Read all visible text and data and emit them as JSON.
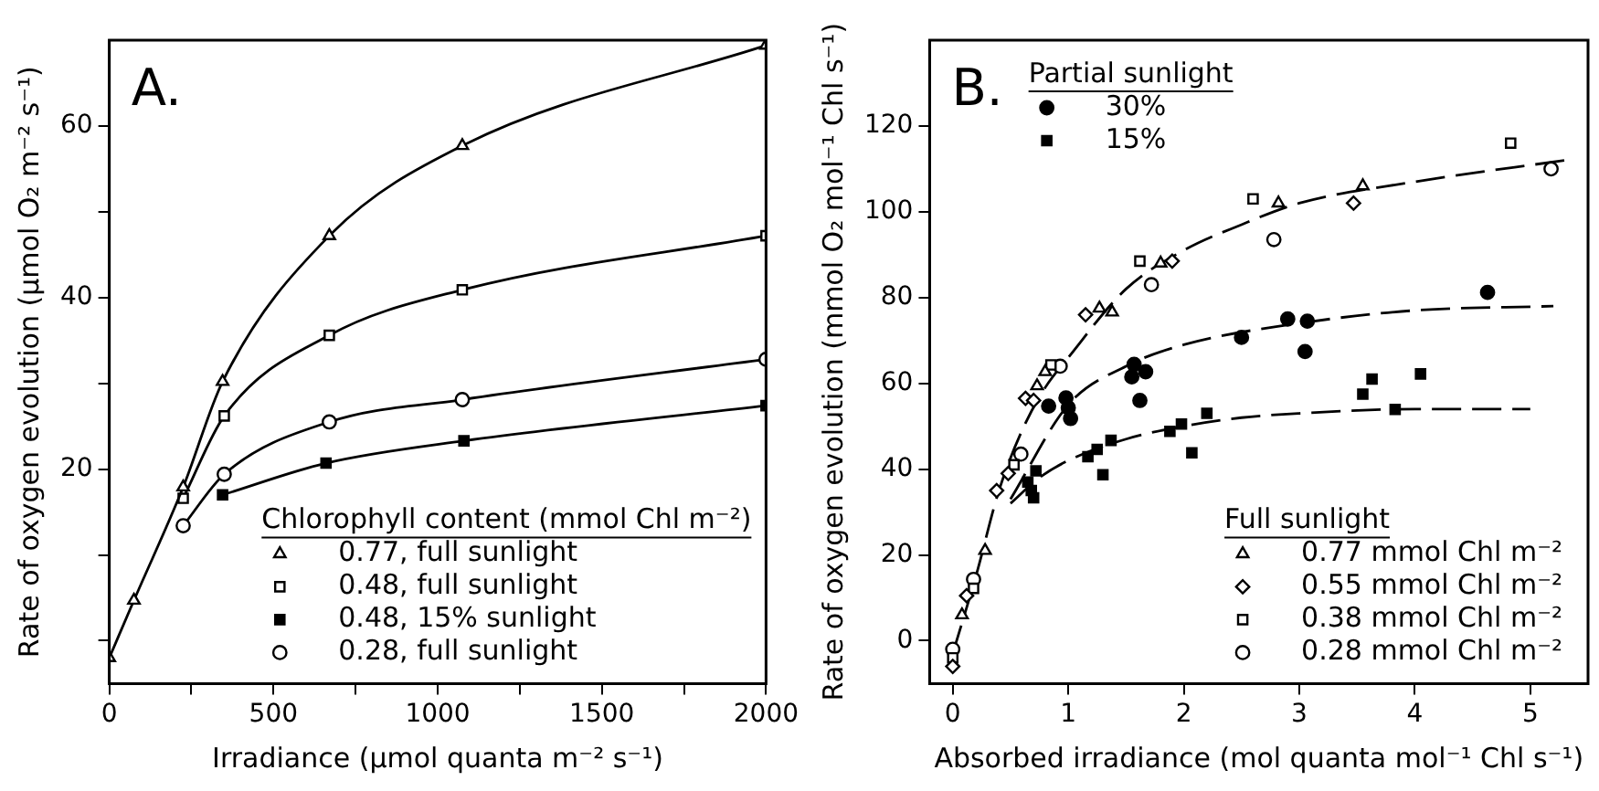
{
  "chart_data": [
    {
      "type": "line",
      "title": "A.",
      "xlabel": "Irradiance (μmol quanta m⁻² s⁻¹)",
      "ylabel": "Rate of oxygen evolution (μmol O₂ m⁻² s⁻¹)",
      "legend_title": "Chlorophyll content (mmol Chl m⁻²)",
      "legend": "bottom right",
      "grid": false,
      "xlim": [
        0,
        2000
      ],
      "ylim": [
        -5,
        70
      ],
      "xticks": [
        0,
        {
          "value": 250,
          "label": null
        },
        500,
        {
          "value": 750,
          "label": null
        },
        1000,
        {
          "value": 1250,
          "label": null
        },
        1500,
        {
          "value": 1750,
          "label": null
        },
        2000
      ],
      "yticks": [
        {
          "value": 0,
          "label": null
        },
        {
          "value": 10,
          "label": null
        },
        20,
        {
          "value": 30,
          "label": null
        },
        40,
        {
          "value": 50,
          "label": null
        },
        60
      ],
      "series": [
        {
          "name": "0.77, full sunlight",
          "color": "#ffffff",
          "marker": "triangle",
          "x": [
            0,
            75,
            225,
            345,
            670,
            1075,
            2000
          ],
          "values": [
            -2,
            4.7,
            17.9,
            30.2,
            47.2,
            57.7,
            69.4
          ]
        },
        {
          "name": "0.48, full sunlight",
          "color": "#ffffff",
          "marker": "square",
          "x": [
            225,
            350,
            670,
            1075,
            2000
          ],
          "values": [
            16.6,
            26.2,
            35.6,
            40.9,
            47.2
          ]
        },
        {
          "name": "0.48, 15% sunlight",
          "color": "#000000",
          "marker": "square",
          "x": [
            345,
            660,
            1080,
            2000
          ],
          "values": [
            17,
            20.7,
            23.3,
            27.4
          ]
        },
        {
          "name": "0.28, full sunlight",
          "color": "#ffffff",
          "marker": "circle",
          "x": [
            225,
            350,
            670,
            1075,
            2000
          ],
          "values": [
            13.4,
            19.4,
            25.5,
            28.1,
            32.8
          ]
        }
      ]
    },
    {
      "type": "scatter",
      "title": "B.",
      "xlabel": "Absorbed irradiance (mol quanta mol⁻¹ Chl s⁻¹)",
      "ylabel": "Rate of oxygen evolution (mmol O₂ mol⁻¹ Chl s⁻¹)",
      "legend_title": "Partial sunlight",
      "legend": "bottom right",
      "annotations": [
        "Full sunlight"
      ],
      "grid": false,
      "xlim": [
        -0.2,
        5.5
      ],
      "ylim": [
        -10,
        140
      ],
      "xticks": [
        0,
        1,
        2,
        3,
        4,
        5
      ],
      "yticks": [
        0,
        20,
        40,
        60,
        80,
        100,
        120
      ],
      "series": [
        {
          "name": "30%",
          "color": "#000000",
          "marker": "circle",
          "x": [
            0.83,
            0.98,
            1.0,
            1.02,
            1.55,
            1.57,
            1.62,
            1.67,
            2.5,
            2.9,
            3.05,
            3.07,
            4.63
          ],
          "values": [
            54.7,
            56.6,
            54.3,
            51.8,
            61.5,
            64.4,
            56,
            62.7,
            70.7,
            75,
            67.4,
            74.5,
            81.2
          ]
        },
        {
          "name": "15%",
          "color": "#000000",
          "marker": "square",
          "x": [
            0.65,
            0.68,
            0.7,
            0.72,
            1.17,
            1.25,
            1.3,
            1.37,
            1.88,
            1.98,
            2.07,
            2.2,
            3.55,
            3.63,
            3.83,
            4.05
          ],
          "values": [
            37,
            35,
            33.3,
            39.6,
            42.9,
            44.6,
            38.7,
            46.7,
            48.8,
            50.5,
            43.8,
            53,
            57.5,
            61,
            53.9,
            62.2
          ]
        },
        {
          "name": "0.77 mmol Chl m⁻²",
          "color": "#ffffff",
          "marker": "triangle",
          "x": [
            0.08,
            0.28,
            0.73,
            0.8,
            1.27,
            1.38,
            1.8,
            2.82,
            3.55
          ],
          "values": [
            6,
            21,
            59.4,
            62.7,
            77.5,
            76.6,
            88,
            102,
            106
          ]
        },
        {
          "name": "0.55 mmol Chl m⁻²",
          "color": "#ffffff",
          "marker": "diamond",
          "x": [
            0,
            0.12,
            0.38,
            0.48,
            0.63,
            0.7,
            1.15,
            1.9,
            3.47
          ],
          "values": [
            -6,
            10.5,
            35,
            39,
            56.5,
            56,
            76,
            88.5,
            102
          ]
        },
        {
          "name": "0.38 mmol Chl m⁻²",
          "color": "#ffffff",
          "marker": "square",
          "x": [
            0,
            0.18,
            0.53,
            0.85,
            1.62,
            2.6,
            4.83
          ],
          "values": [
            -4,
            12.2,
            41,
            64.3,
            88.5,
            103,
            116
          ]
        },
        {
          "name": "0.28 mmol Chl m⁻²",
          "color": "#ffffff",
          "marker": "circle",
          "x": [
            0,
            0.18,
            0.59,
            0.93,
            1.72,
            2.78,
            5.18
          ],
          "values": [
            -2,
            14.3,
            43.5,
            64,
            83,
            93.5,
            110
          ]
        },
        {
          "type": "line",
          "color": "#000000",
          "marker": "none",
          "line_style": "dashed",
          "x": [
            0,
            0.2,
            0.4,
            0.6,
            0.8,
            1,
            1.5,
            2,
            2.5,
            3,
            4,
            5.3
          ],
          "values": [
            -3,
            15,
            35,
            49,
            59,
            66,
            82,
            91,
            97,
            102,
            107,
            112
          ]
        },
        {
          "type": "line",
          "color": "#000000",
          "marker": "none",
          "line_style": "dashed",
          "x": [
            0.5,
            1,
            1.5,
            2,
            3,
            4,
            5.2
          ],
          "values": [
            33,
            55,
            64,
            69,
            74,
            77,
            78
          ]
        },
        {
          "type": "line",
          "color": "#000000",
          "marker": "none",
          "line_style": "dashed",
          "x": [
            0.5,
            0.75,
            1,
            1.5,
            2,
            2.5,
            3,
            4,
            5
          ],
          "values": [
            32,
            38,
            42,
            47,
            50,
            52,
            53,
            54,
            54
          ]
        }
      ]
    }
  ]
}
